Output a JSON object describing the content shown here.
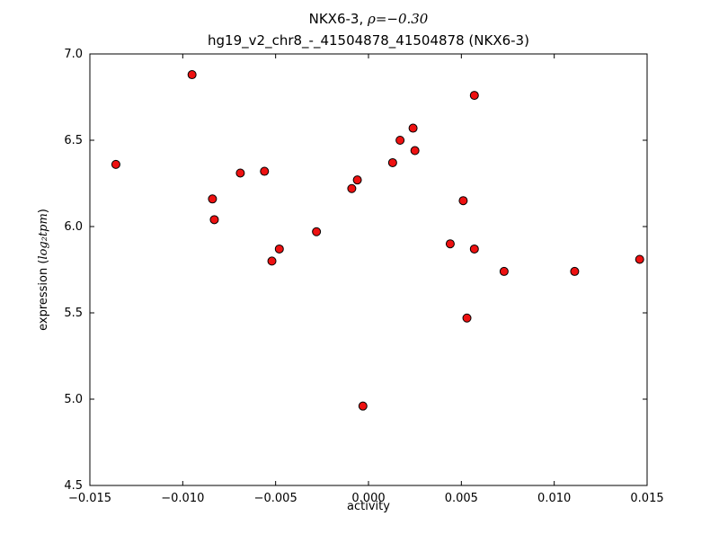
{
  "figure": {
    "title_line1_prefix": "NKX6-3, ",
    "title_line1_math": "ρ=−0.30",
    "title_line2": "hg19_v2_chr8_-_41504878_41504878 (NKX6-3)",
    "xlabel": "activity",
    "ylabel_prefix": "expression (",
    "ylabel_math": "log₂tpm",
    "ylabel_suffix": ")"
  },
  "chart_data": {
    "type": "scatter",
    "title": "NKX6-3, ρ=−0.30\nhg19_v2_chr8_-_41504878_41504878 (NKX6-3)",
    "xlabel": "activity",
    "ylabel": "expression (log2tpm)",
    "xlim": [
      -0.015,
      0.015
    ],
    "ylim": [
      4.5,
      7.0
    ],
    "xticks": [
      -0.015,
      -0.01,
      -0.005,
      0.0,
      0.005,
      0.01,
      0.015
    ],
    "xtick_labels": [
      "−0.015",
      "−0.010",
      "−0.005",
      "0.000",
      "0.005",
      "0.010",
      "0.015"
    ],
    "yticks": [
      4.5,
      5.0,
      5.5,
      6.0,
      6.5,
      7.0
    ],
    "ytick_labels": [
      "4.5",
      "5.0",
      "5.5",
      "6.0",
      "6.5",
      "7.0"
    ],
    "grid": false,
    "legend": null,
    "marker_color": "#ee1111",
    "marker_edge": "#000000",
    "points": [
      [
        -0.0136,
        6.36
      ],
      [
        -0.0095,
        6.88
      ],
      [
        -0.0084,
        6.16
      ],
      [
        -0.0083,
        6.04
      ],
      [
        -0.0069,
        6.31
      ],
      [
        -0.0056,
        6.32
      ],
      [
        -0.0052,
        5.8
      ],
      [
        -0.0048,
        5.87
      ],
      [
        -0.0028,
        5.97
      ],
      [
        -0.0009,
        6.22
      ],
      [
        -0.0006,
        6.27
      ],
      [
        -0.0003,
        4.96
      ],
      [
        0.0013,
        6.37
      ],
      [
        0.0017,
        6.5
      ],
      [
        0.0024,
        6.57
      ],
      [
        0.0025,
        6.44
      ],
      [
        0.0044,
        5.9
      ],
      [
        0.0051,
        6.15
      ],
      [
        0.0053,
        5.47
      ],
      [
        0.0057,
        6.76
      ],
      [
        0.0057,
        5.87
      ],
      [
        0.0073,
        5.74
      ],
      [
        0.0111,
        5.74
      ],
      [
        0.0146,
        5.81
      ]
    ]
  }
}
